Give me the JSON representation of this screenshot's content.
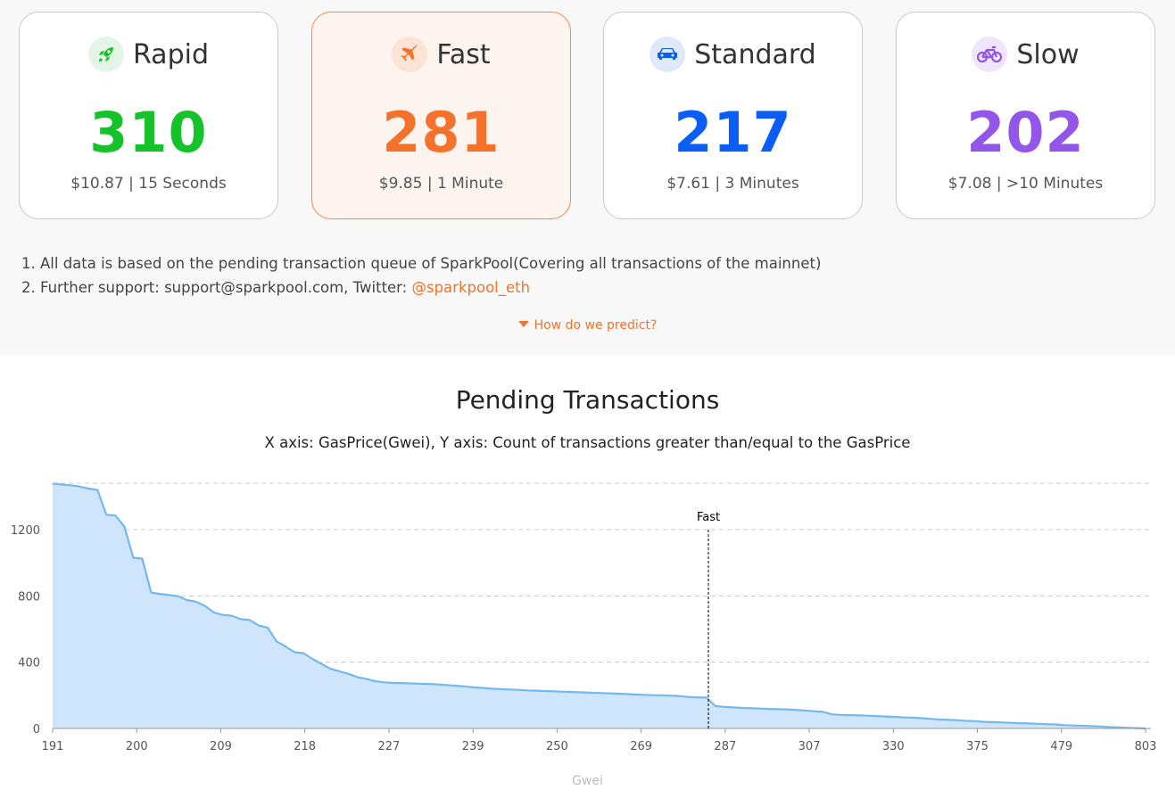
{
  "cards": [
    {
      "title": "Rapid",
      "value": "310",
      "sub": "$10.87 | 15 Seconds",
      "color": "#16c229",
      "icon": "rocket-icon",
      "icon_bg": "#e3f5e6"
    },
    {
      "title": "Fast",
      "value": "281",
      "sub": "$9.85 | 1 Minute",
      "color": "#f5722d",
      "icon": "plane-icon",
      "icon_bg": "#fbe3d6"
    },
    {
      "title": "Standard",
      "value": "217",
      "sub": "$7.61 | 3 Minutes",
      "color": "#0a5ef5",
      "icon": "car-icon",
      "icon_bg": "#e0e9fb"
    },
    {
      "title": "Slow",
      "value": "202",
      "sub": "$7.08 | >10 Minutes",
      "color": "#9257e8",
      "icon": "bicycle-icon",
      "icon_bg": "#efe6fb"
    }
  ],
  "notes": {
    "line1": "1. All data is based on the pending transaction queue of SparkPool(Covering all transactions of the mainnet)",
    "line2_prefix": "2. Further support: support@sparkpool.com, Twitter: ",
    "line2_link": "@sparkpool_eth"
  },
  "predict_label": "How do we predict?",
  "chart_data": {
    "type": "area",
    "title": "Pending Transactions",
    "subtitle": "X axis: GasPrice(Gwei), Y axis: Count of transactions greater than/equal to the GasPrice",
    "xlabel": "Gwei",
    "ylabel": "",
    "x_tick_labels": [
      "191",
      "200",
      "209",
      "218",
      "227",
      "239",
      "250",
      "269",
      "287",
      "307",
      "330",
      "375",
      "479",
      "803"
    ],
    "y_ticks": [
      0,
      400,
      800,
      1200
    ],
    "ylim": [
      0,
      1480
    ],
    "grid": true,
    "marker": {
      "label": "Fast",
      "x_position_between_ticks": "just before 287"
    },
    "series": [
      {
        "values": [
          1478,
          1472,
          1468,
          1460,
          1448,
          1440,
          1290,
          1285,
          1220,
          1030,
          1025,
          820,
          812,
          805,
          798,
          775,
          765,
          740,
          700,
          685,
          680,
          660,
          655,
          622,
          608,
          525,
          495,
          460,
          455,
          420,
          390,
          360,
          345,
          330,
          310,
          300,
          285,
          278,
          275,
          274,
          272,
          270,
          268,
          266,
          262,
          258,
          254,
          248,
          245,
          240,
          238,
          235,
          233,
          230,
          228,
          226,
          224,
          222,
          220,
          218,
          216,
          214,
          212,
          210,
          208,
          205,
          203,
          201,
          200,
          198,
          196,
          190,
          188,
          186,
          135,
          130,
          127,
          124,
          122,
          120,
          118,
          116,
          115,
          112,
          108,
          104,
          100,
          85,
          82,
          80,
          79,
          77,
          75,
          72,
          70,
          67,
          65,
          62,
          58,
          54,
          52,
          50,
          46,
          44,
          40,
          38,
          36,
          34,
          32,
          30,
          28,
          26,
          24,
          20,
          18,
          16,
          14,
          12,
          8,
          6,
          4,
          2,
          0
        ]
      }
    ],
    "colors": {
      "line": "#75b8f0",
      "fill": "#cfe5fb",
      "marker": "#000000",
      "grid": "#c8c8c8"
    }
  }
}
